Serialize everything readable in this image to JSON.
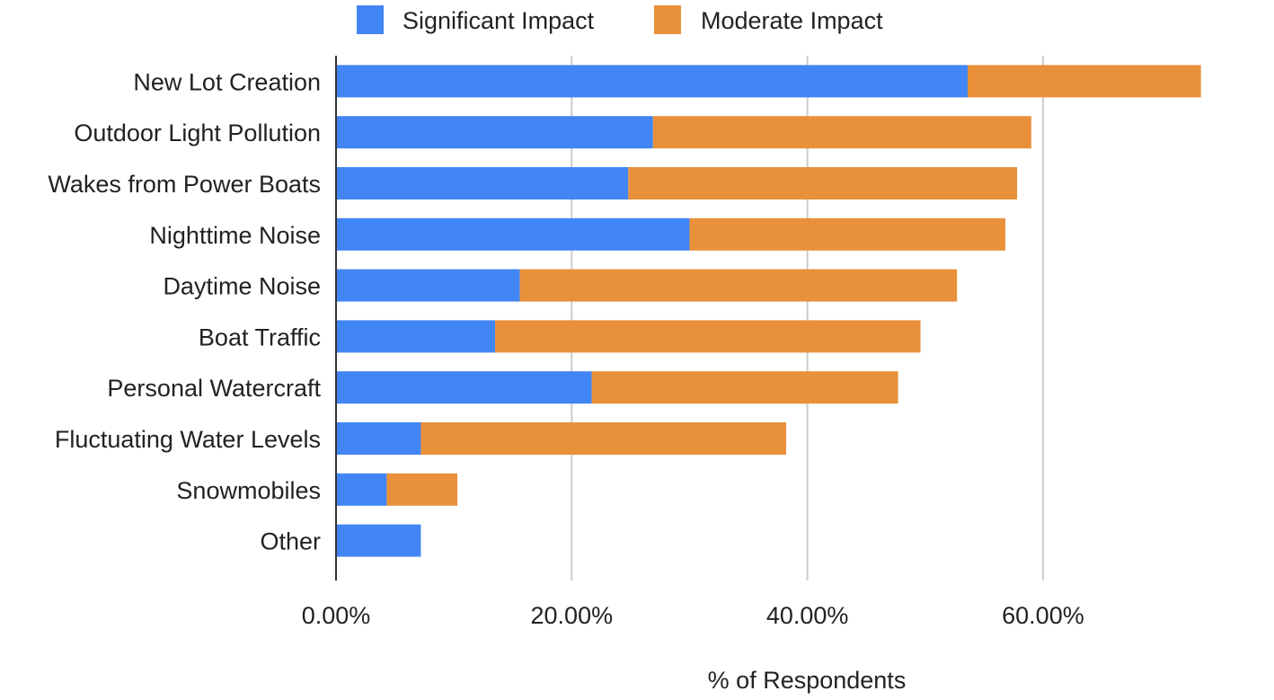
{
  "chart_data": {
    "type": "bar",
    "orientation": "horizontal",
    "stacked": true,
    "categories": [
      "New Lot Creation",
      "Outdoor Light Pollution",
      "Wakes from Power Boats",
      "Nighttime Noise",
      "Daytime Noise",
      "Boat Traffic",
      "Personal Watercraft",
      "Fluctuating Water Levels",
      "Snowmobiles",
      "Other"
    ],
    "series": [
      {
        "name": "Significant Impact",
        "color": "#4285f4",
        "values": [
          53.6,
          26.9,
          24.8,
          30.0,
          15.6,
          13.5,
          21.7,
          7.2,
          4.3,
          7.2
        ]
      },
      {
        "name": "Moderate Impact",
        "color": "#e8913a",
        "values": [
          19.8,
          32.1,
          33.0,
          26.8,
          37.1,
          36.1,
          26.0,
          31.0,
          6.0,
          0
        ]
      }
    ],
    "xlim": [
      0,
      73.5
    ],
    "x_ticks": [
      0,
      20,
      40,
      60
    ],
    "x_tick_labels": [
      "0.00%",
      "20.00%",
      "40.00%",
      "60.00%"
    ],
    "xlabel": "% of Respondents",
    "ylabel": "",
    "title": "",
    "legend_position": "top",
    "grid": "vertical"
  }
}
